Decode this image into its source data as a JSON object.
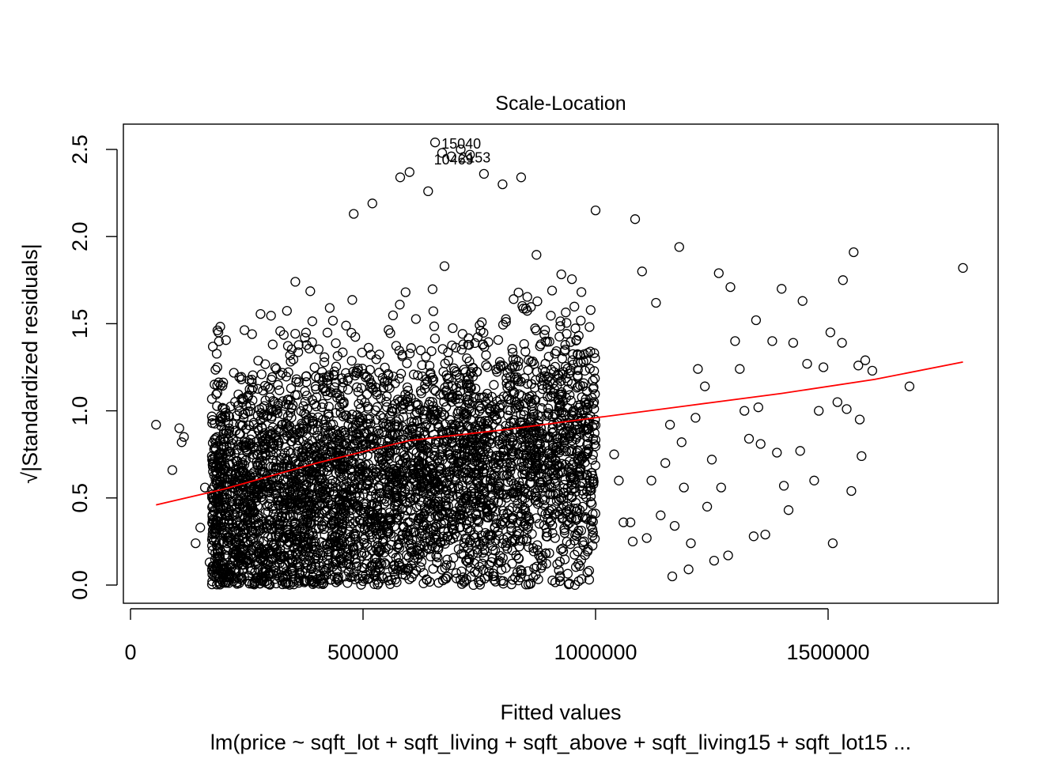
{
  "chart_data": {
    "type": "scatter",
    "title": "Scale-Location",
    "xlabel": "Fitted values",
    "ylabel": "√|Standardized residuals|",
    "sublabel": "lm(price ~ sqft_lot + sqft_living + sqft_above + sqft_living15 + sqft_lot15 ...",
    "xlim": [
      0,
      1850000
    ],
    "ylim": [
      0,
      2.5
    ],
    "x_ticks": [
      0,
      500000,
      1000000,
      1500000
    ],
    "x_tick_labels": [
      "0",
      "500000",
      "1000000",
      "1500000"
    ],
    "y_ticks": [
      0.0,
      0.5,
      1.0,
      1.5,
      2.0,
      2.5
    ],
    "y_tick_labels": [
      "0.0",
      "0.5",
      "1.0",
      "1.5",
      "2.0",
      "2.5"
    ],
    "grid": false,
    "series": [
      {
        "points": [
          [
            55000,
            0.92
          ],
          [
            90000,
            0.66
          ],
          [
            105000,
            0.9
          ],
          [
            110000,
            0.82
          ],
          [
            115000,
            0.85
          ],
          [
            140000,
            0.24
          ],
          [
            150000,
            0.33
          ],
          [
            160000,
            0.56
          ],
          [
            170000,
            0.13
          ],
          [
            175000,
            0.74
          ],
          [
            1040000,
            0.75
          ],
          [
            1050000,
            0.6
          ],
          [
            1060000,
            0.36
          ],
          [
            1075000,
            0.36
          ],
          [
            1080000,
            0.25
          ],
          [
            1085000,
            2.1
          ],
          [
            1100000,
            1.8
          ],
          [
            1110000,
            0.27
          ],
          [
            1120000,
            0.6
          ],
          [
            1130000,
            1.62
          ],
          [
            1140000,
            0.4
          ],
          [
            1150000,
            0.7
          ],
          [
            1160000,
            0.92
          ],
          [
            1165000,
            0.05
          ],
          [
            1170000,
            0.34
          ],
          [
            1180000,
            1.94
          ],
          [
            1185000,
            0.82
          ],
          [
            1190000,
            0.56
          ],
          [
            1200000,
            0.09
          ],
          [
            1205000,
            0.24
          ],
          [
            1215000,
            0.96
          ],
          [
            1220000,
            1.24
          ],
          [
            1235000,
            1.14
          ],
          [
            1240000,
            0.45
          ],
          [
            1250000,
            0.72
          ],
          [
            1255000,
            0.14
          ],
          [
            1265000,
            1.79
          ],
          [
            1270000,
            0.56
          ],
          [
            1285000,
            0.17
          ],
          [
            1290000,
            1.71
          ],
          [
            1300000,
            1.4
          ],
          [
            1310000,
            1.24
          ],
          [
            1320000,
            1.0
          ],
          [
            1330000,
            0.84
          ],
          [
            1340000,
            0.28
          ],
          [
            1345000,
            1.52
          ],
          [
            1350000,
            1.02
          ],
          [
            1355000,
            0.81
          ],
          [
            1365000,
            0.29
          ],
          [
            1380000,
            1.4
          ],
          [
            1390000,
            0.76
          ],
          [
            1400000,
            1.7
          ],
          [
            1405000,
            0.57
          ],
          [
            1415000,
            0.43
          ],
          [
            1425000,
            1.39
          ],
          [
            1440000,
            0.77
          ],
          [
            1445000,
            1.63
          ],
          [
            1455000,
            1.27
          ],
          [
            1470000,
            0.6
          ],
          [
            1480000,
            1.0
          ],
          [
            1490000,
            1.25
          ],
          [
            1505000,
            1.45
          ],
          [
            1510000,
            0.24
          ],
          [
            1520000,
            1.05
          ],
          [
            1530000,
            1.39
          ],
          [
            1532000,
            1.75
          ],
          [
            1540000,
            1.01
          ],
          [
            1550000,
            0.54
          ],
          [
            1555000,
            1.91
          ],
          [
            1565000,
            1.26
          ],
          [
            1568000,
            0.95
          ],
          [
            1572000,
            0.74
          ],
          [
            1580000,
            1.29
          ],
          [
            1595000,
            1.23
          ],
          [
            1675000,
            1.14
          ],
          [
            1790000,
            1.82
          ],
          [
            655000,
            2.54
          ],
          [
            670000,
            2.48
          ],
          [
            690000,
            2.46
          ],
          [
            710000,
            2.5
          ],
          [
            730000,
            2.47
          ],
          [
            580000,
            2.34
          ],
          [
            600000,
            2.37
          ],
          [
            640000,
            2.26
          ],
          [
            760000,
            2.36
          ],
          [
            800000,
            2.3
          ],
          [
            840000,
            2.34
          ],
          [
            480000,
            2.13
          ],
          [
            520000,
            2.19
          ],
          [
            1000000,
            2.15
          ]
        ],
        "labeled_points": [
          {
            "x": 655000,
            "y": 2.54,
            "label": "15040"
          },
          {
            "x": 690000,
            "y": 2.46,
            "label": "10469"
          },
          {
            "x": 730000,
            "y": 2.47,
            "label": "2153"
          }
        ]
      }
    ],
    "lowess_line": {
      "color": "#ff0000",
      "x": [
        55000,
        200000,
        400000,
        600000,
        800000,
        1000000,
        1200000,
        1400000,
        1600000,
        1790000
      ],
      "y": [
        0.46,
        0.55,
        0.7,
        0.83,
        0.89,
        0.96,
        1.03,
        1.1,
        1.18,
        1.28
      ]
    },
    "marker_color": "#000000",
    "dense_region": {
      "note_hidden": false,
      "x_range": [
        175000,
        1000000
      ],
      "y_center": [
        0.72,
        0.72
      ],
      "count": 4200
    }
  }
}
